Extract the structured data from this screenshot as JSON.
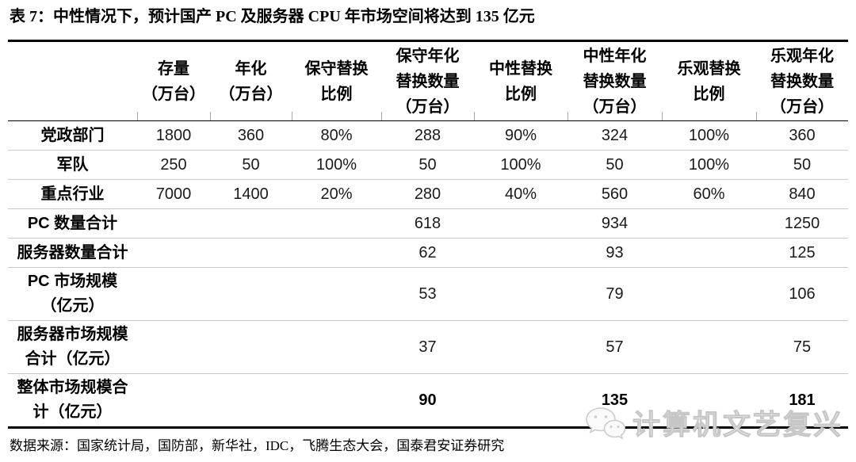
{
  "title": "表 7：中性情况下，预计国产 PC 及服务器 CPU 年市场空间将达到 135 亿元",
  "table": {
    "columns": [
      "",
      "存量\n（万台）",
      "年化\n（万台）",
      "保守替换\n比例",
      "保守年化\n替换数量\n（万台）",
      "中性替换\n比例",
      "中性年化\n替换数量\n（万台）",
      "乐观替换\n比例",
      "乐观年化\n替换数量\n（万台）"
    ],
    "rows": [
      {
        "label": "党政部门",
        "values": [
          "1800",
          "360",
          "80%",
          "288",
          "90%",
          "324",
          "100%",
          "360"
        ],
        "bold": false
      },
      {
        "label": "军队",
        "values": [
          "250",
          "50",
          "100%",
          "50",
          "100%",
          "50",
          "100%",
          "50"
        ],
        "bold": false
      },
      {
        "label": "重点行业",
        "values": [
          "7000",
          "1400",
          "20%",
          "280",
          "40%",
          "560",
          "60%",
          "840"
        ],
        "bold": false
      },
      {
        "label": "PC 数量合计",
        "values": [
          "",
          "",
          "",
          "618",
          "",
          "934",
          "",
          "1250"
        ],
        "bold": false
      },
      {
        "label": "服务器数量合计",
        "values": [
          "",
          "",
          "",
          "62",
          "",
          "93",
          "",
          "125"
        ],
        "bold": false
      },
      {
        "label": "PC 市场规模\n（亿元）",
        "values": [
          "",
          "",
          "",
          "53",
          "",
          "79",
          "",
          "106"
        ],
        "bold": false
      },
      {
        "label": "服务器市场规模\n合计（亿元）",
        "values": [
          "",
          "",
          "",
          "37",
          "",
          "57",
          "",
          "75"
        ],
        "bold": false
      },
      {
        "label": "整体市场规模合\n计（亿元）",
        "values": [
          "",
          "",
          "",
          "90",
          "",
          "135",
          "",
          "181"
        ],
        "bold": true
      }
    ]
  },
  "footer": {
    "source": "数据来源：国家统计局，国防部，新华社，IDC，飞腾生态大会，国泰君安证券研究"
  },
  "watermark": {
    "text": "计算机文艺复兴"
  },
  "colors": {
    "text": "#000000",
    "table_border": "#000000",
    "row_separator": "#c9c9c9",
    "watermark": "#d9d9d9"
  }
}
